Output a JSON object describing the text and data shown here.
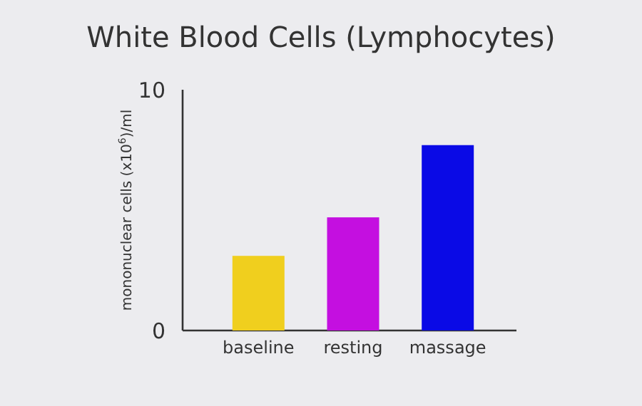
{
  "chart_data": {
    "type": "bar",
    "title": "White Blood Cells (Lymphocytes)",
    "ylabel": "mononuclear cells (x10$^{6}$)/ml",
    "categories": [
      "baseline",
      "resting",
      "massage"
    ],
    "values": [
      3.1,
      4.7,
      7.7
    ],
    "colors": [
      "#f0cf1e",
      "#c40fe0",
      "#0a0ae6"
    ],
    "ylim": [
      0,
      10
    ],
    "yticks": [
      0,
      10
    ],
    "grid": false
  }
}
